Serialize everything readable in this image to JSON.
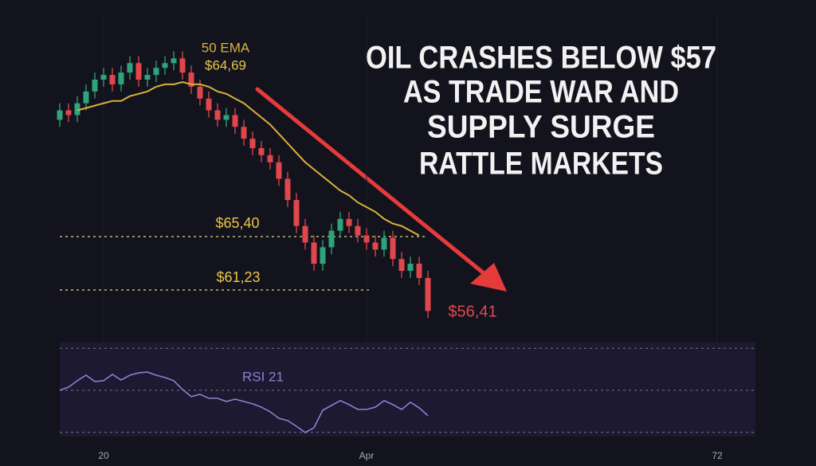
{
  "chart_data": [
    {
      "type": "candlestick",
      "title": [
        "OIL CRASHES BELOW $57",
        "AS TRADE WAR AND",
        "SUPPLY SURGE",
        "RATTLE MARKETS"
      ],
      "x": [
        0,
        1,
        2,
        3,
        4,
        5,
        6,
        7,
        8,
        9,
        10,
        11,
        12,
        13,
        14,
        15,
        16,
        17,
        18,
        19,
        20,
        21,
        22,
        23,
        24,
        25,
        26,
        27,
        28,
        29,
        30,
        31,
        32,
        33,
        34,
        35,
        36,
        37,
        38,
        39,
        40,
        41,
        42
      ],
      "open": [
        63.6,
        64.0,
        63.8,
        64.3,
        64.8,
        65.3,
        65.5,
        65.1,
        65.6,
        66.0,
        65.3,
        65.5,
        65.8,
        66.0,
        66.2,
        65.6,
        65.0,
        64.5,
        64.0,
        63.6,
        63.8,
        63.3,
        62.8,
        62.4,
        62.1,
        61.8,
        61.1,
        60.2,
        59.1,
        58.4,
        57.5,
        58.2,
        58.9,
        59.4,
        59.1,
        58.7,
        58.4,
        58.1,
        58.6,
        57.7,
        57.2,
        57.5,
        56.9
      ],
      "high": [
        64.3,
        64.3,
        64.6,
        65.1,
        65.6,
        65.8,
        65.8,
        65.9,
        66.3,
        66.3,
        65.8,
        66.1,
        66.3,
        66.5,
        66.5,
        65.9,
        65.3,
        64.8,
        64.3,
        64.1,
        64.1,
        63.6,
        63.1,
        62.7,
        62.4,
        62.1,
        61.4,
        60.5,
        59.4,
        58.7,
        58.5,
        59.2,
        59.7,
        59.7,
        59.4,
        59.0,
        58.7,
        58.9,
        58.9,
        58.0,
        57.8,
        57.8,
        57.2
      ],
      "low": [
        63.3,
        63.5,
        63.5,
        64.0,
        64.5,
        65.0,
        64.8,
        64.8,
        65.3,
        65.0,
        65.0,
        65.2,
        65.5,
        65.7,
        65.3,
        64.7,
        64.2,
        63.7,
        63.3,
        63.3,
        63.0,
        62.5,
        62.1,
        61.8,
        61.5,
        60.8,
        59.9,
        58.8,
        58.1,
        57.2,
        57.2,
        57.9,
        58.6,
        58.8,
        58.4,
        58.1,
        57.8,
        57.8,
        57.4,
        56.9,
        56.9,
        56.6,
        55.2
      ],
      "close": [
        64.0,
        63.8,
        64.3,
        64.8,
        65.3,
        65.5,
        65.1,
        65.6,
        66.0,
        65.3,
        65.5,
        65.8,
        66.0,
        66.2,
        65.6,
        65.0,
        64.5,
        64.0,
        63.6,
        63.8,
        63.3,
        62.8,
        62.4,
        62.1,
        61.8,
        61.1,
        60.2,
        59.1,
        58.4,
        57.5,
        58.2,
        58.9,
        59.4,
        59.1,
        58.7,
        58.4,
        58.1,
        58.6,
        57.7,
        57.2,
        57.5,
        56.9,
        55.5
      ],
      "up_color": "#2fa37a",
      "down_color": "#e0474c",
      "ema": {
        "name": "50 EMA",
        "color": "#d9b23a",
        "values": [
          null,
          null,
          64.0,
          64.1,
          64.2,
          64.3,
          64.4,
          64.4,
          64.6,
          64.7,
          64.8,
          65.0,
          65.1,
          65.1,
          65.2,
          65.1,
          65.1,
          65.0,
          64.8,
          64.7,
          64.5,
          64.3,
          64.0,
          63.7,
          63.4,
          63.0,
          62.6,
          62.2,
          61.8,
          61.5,
          61.2,
          60.9,
          60.6,
          60.4,
          60.1,
          59.9,
          59.7,
          59.4,
          59.2,
          59.1,
          58.9,
          58.7,
          null
        ]
      },
      "annotations": [
        {
          "text": "$64,69",
          "color": "#e8c548"
        },
        {
          "text": "$65,40",
          "color": "#e8c548"
        },
        {
          "text": "$61,23",
          "color": "#e8c548"
        },
        {
          "text": "$56,41",
          "color": "#e0474c"
        }
      ],
      "xlim": [
        0,
        79
      ],
      "xticks": [
        {
          "value": 5,
          "label": "20"
        },
        {
          "value": 35,
          "label": "Apr"
        },
        {
          "value": 75,
          "label": "72"
        }
      ],
      "ylim": [
        54.5,
        68
      ]
    },
    {
      "type": "line",
      "name": "RSI 21",
      "color": "#8f7fd0",
      "x": [
        0,
        1,
        2,
        3,
        4,
        5,
        6,
        7,
        8,
        9,
        10,
        11,
        12,
        13,
        14,
        15,
        16,
        17,
        18,
        19,
        20,
        21,
        22,
        23,
        24,
        25,
        26,
        27,
        28,
        29,
        30,
        31,
        32,
        33,
        34,
        35,
        36,
        37,
        38,
        39,
        40,
        41,
        42
      ],
      "values": [
        50.0,
        51.5,
        54.6,
        57.2,
        54.2,
        54.6,
        57.6,
        54.9,
        57.2,
        58.3,
        58.7,
        57.2,
        56.1,
        54.6,
        50.4,
        47.0,
        48.1,
        46.2,
        46.2,
        44.7,
        45.8,
        44.7,
        43.6,
        42.0,
        39.8,
        36.7,
        35.6,
        32.9,
        29.9,
        32.2,
        40.5,
        42.8,
        45.1,
        43.2,
        40.9,
        40.9,
        42.0,
        45.1,
        43.2,
        40.9,
        44.3,
        41.7,
        37.9
      ],
      "levels": [
        70,
        50,
        30
      ],
      "xlim": [
        0,
        79
      ],
      "ylim": [
        28,
        72
      ]
    }
  ]
}
